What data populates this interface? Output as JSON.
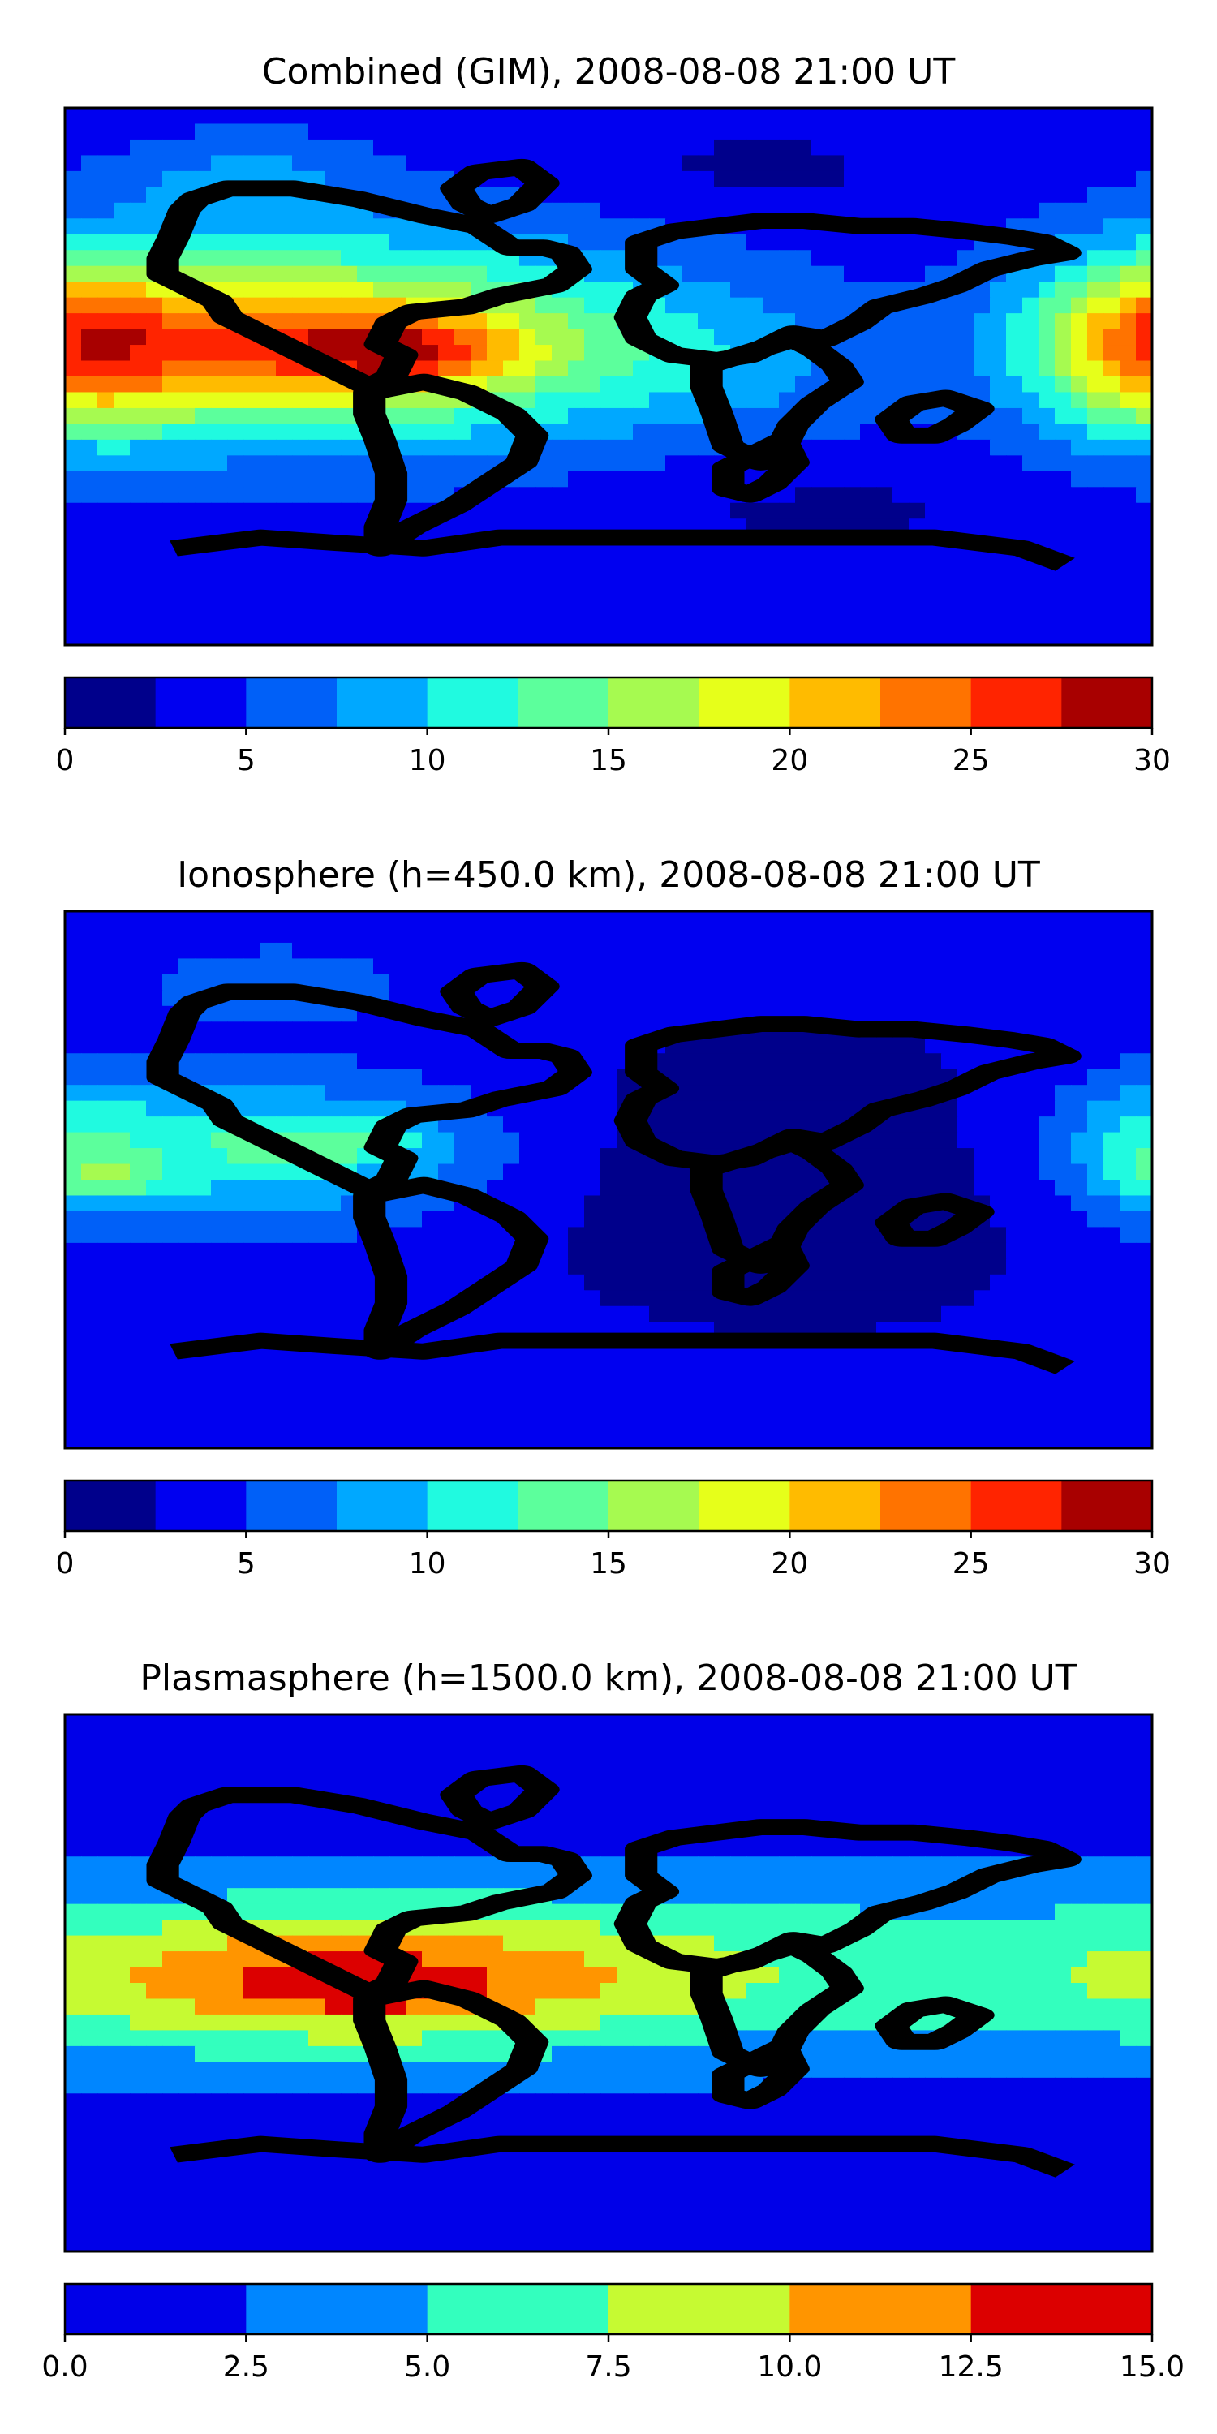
{
  "chart_data": [
    {
      "type": "heatmap",
      "title": "Combined (GIM), 2008-08-08 21:00 UT",
      "variable": "combined",
      "colorbar": {
        "levels": [
          0,
          2.5,
          5,
          7.5,
          10,
          12.5,
          15,
          17.5,
          20,
          22.5,
          25,
          27.5,
          30
        ],
        "ticks": [
          0,
          5,
          10,
          15,
          20,
          25,
          30
        ],
        "tick_labels": [
          "0",
          "5",
          "10",
          "15",
          "20",
          "25",
          "30"
        ],
        "colors": [
          "#00008b",
          "#0000f0",
          "#0060f8",
          "#00a8ff",
          "#20fae0",
          "#5cff9c",
          "#a6fa50",
          "#e6ff1a",
          "#ffbb00",
          "#ff7300",
          "#ff2400",
          "#a80000"
        ]
      },
      "field": {
        "background": 4,
        "blobs": [
          {
            "lon": -85,
            "lat": 12,
            "rlon": 95,
            "rlat": 32,
            "amp": 17
          },
          {
            "lon": -70,
            "lat": 8,
            "rlon": 40,
            "rlat": 11,
            "amp": 9
          },
          {
            "lon": -150,
            "lat": 8,
            "rlon": 60,
            "rlat": 25,
            "amp": 5
          },
          {
            "lon": 180,
            "lat": 12,
            "rlon": 40,
            "rlat": 30,
            "amp": 13
          },
          {
            "lon": -120,
            "lat": 65,
            "rlon": 40,
            "rlat": 15,
            "amp": 4
          },
          {
            "lon": 40,
            "lat": 5,
            "rlon": 60,
            "rlat": 25,
            "amp": 3
          },
          {
            "lon": 50,
            "lat": 70,
            "rlon": 60,
            "rlat": 15,
            "amp": -2
          },
          {
            "lon": 70,
            "lat": -45,
            "rlon": 70,
            "rlat": 15,
            "amp": -2
          }
        ]
      }
    },
    {
      "type": "heatmap",
      "title": "Ionosphere  (h=450.0 km), 2008-08-08 21:00 UT",
      "variable": "ionosphere",
      "colorbar": {
        "levels": [
          0,
          2.5,
          5,
          7.5,
          10,
          12.5,
          15,
          17.5,
          20,
          22.5,
          25,
          27.5,
          30
        ],
        "ticks": [
          0,
          5,
          10,
          15,
          20,
          25,
          30
        ],
        "tick_labels": [
          "0",
          "5",
          "10",
          "15",
          "20",
          "25",
          "30"
        ],
        "colors": [
          "#00008b",
          "#0000f0",
          "#0060f8",
          "#00a8ff",
          "#20fae0",
          "#5cff9c",
          "#a6fa50",
          "#e6ff1a",
          "#ffbb00",
          "#ff7300",
          "#ff2400",
          "#a80000"
        ]
      },
      "field": {
        "background": 3.5,
        "blobs": [
          {
            "lon": -120,
            "lat": 10,
            "rlon": 80,
            "rlat": 25,
            "amp": 8
          },
          {
            "lon": -90,
            "lat": 12,
            "rlon": 35,
            "rlat": 8,
            "amp": 4
          },
          {
            "lon": -165,
            "lat": 0,
            "rlon": 20,
            "rlat": 6,
            "amp": 4
          },
          {
            "lon": -110,
            "lat": 65,
            "rlon": 40,
            "rlat": 12,
            "amp": 4
          },
          {
            "lon": 60,
            "lat": 0,
            "rlon": 90,
            "rlat": 50,
            "amp": -3
          },
          {
            "lon": 180,
            "lat": 10,
            "rlon": 30,
            "rlat": 25,
            "amp": 5
          }
        ]
      }
    },
    {
      "type": "heatmap",
      "title": "Plasmasphere (h=1500.0 km), 2008-08-08 21:00 UT",
      "variable": "plasmasphere",
      "colorbar": {
        "levels": [
          0,
          2.5,
          5,
          7.5,
          10,
          12.5,
          15
        ],
        "ticks": [
          0,
          2.5,
          5,
          7.5,
          10,
          12.5,
          15
        ],
        "tick_labels": [
          "0.0",
          "2.5",
          "5.0",
          "7.5",
          "10.0",
          "12.5",
          "15.0"
        ],
        "colors": [
          "#0000e8",
          "#0086ff",
          "#33ffbe",
          "#c6fa32",
          "#ff9500",
          "#dc0000"
        ]
      },
      "field": {
        "background": 1.5,
        "blobs": [
          {
            "lon": 0,
            "lat": 5,
            "rlon": 400,
            "rlat": 30,
            "amp": 5.2
          },
          {
            "lon": -85,
            "lat": 0,
            "rlon": 100,
            "rlat": 22,
            "amp": 7
          },
          {
            "lon": -80,
            "lat": -2,
            "rlon": 30,
            "rlat": 7,
            "amp": 2
          }
        ]
      }
    }
  ]
}
